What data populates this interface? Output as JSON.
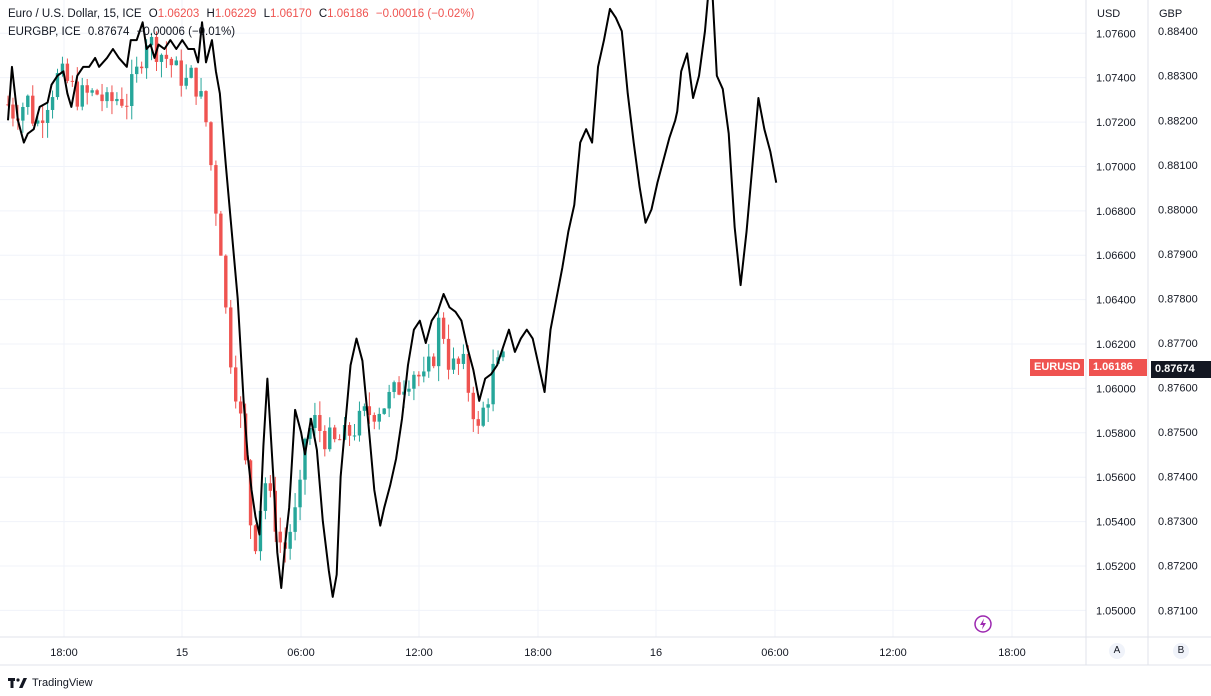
{
  "legend": {
    "symbol1": "Euro / U.S. Dollar, 15, ICE",
    "o_label": "O",
    "o_value": "1.06203",
    "h_label": "H",
    "h_value": "1.06229",
    "l_label": "L",
    "l_value": "1.06170",
    "c_label": "C",
    "c_value": "1.06186",
    "change1": "−0.00016 (−0.02%)",
    "symbol2": "EURGBP, ICE",
    "value2": "0.87674",
    "change2": "−0.00006 (−0.01%)"
  },
  "axes": {
    "left_unit": "USD",
    "right_unit": "GBP",
    "btn_a": "A",
    "btn_b": "B"
  },
  "tags": {
    "eurusd_label": "EURUSD",
    "eurusd_value": "1.06186",
    "eurgbp_value": "0.87674"
  },
  "footer": {
    "brand": "TradingView"
  },
  "colors": {
    "up": "#26a69a",
    "down": "#ef5350",
    "line": "#000000",
    "grid": "#f0f3fa",
    "tag_black": "#131722"
  },
  "chart_data": {
    "type": "line",
    "x_ticks": [
      "18:00",
      "15",
      "06:00",
      "12:00",
      "18:00",
      "16",
      "06:00",
      "12:00",
      "18:00"
    ],
    "usd_ticks": [
      "1.07600",
      "1.07400",
      "1.07200",
      "1.07000",
      "1.06800",
      "1.06600",
      "1.06400",
      "1.06200",
      "1.06000",
      "1.05800",
      "1.05600",
      "1.05400",
      "1.05200",
      "1.05000"
    ],
    "gbp_ticks": [
      "0.88400",
      "0.88300",
      "0.88200",
      "0.88100",
      "0.88000",
      "0.87900",
      "0.87800",
      "0.87700",
      "0.87600",
      "0.87500",
      "0.87400",
      "0.87300",
      "0.87200",
      "0.87100"
    ],
    "usd_range": [
      1.0488,
      1.0775
    ],
    "gbp_range": [
      0.8704,
      0.8847
    ],
    "series": [
      {
        "name": "Euro / U.S. Dollar",
        "kind": "candles",
        "anchors": [
          [
            0,
            1.0728
          ],
          [
            0.3,
            1.0724
          ],
          [
            1,
            1.073
          ],
          [
            1.4,
            1.0718
          ],
          [
            2,
            1.073
          ],
          [
            2.6,
            1.0742
          ],
          [
            3,
            1.0738
          ],
          [
            3.5,
            1.0732
          ],
          [
            4,
            1.0732
          ],
          [
            4.5,
            1.0733
          ],
          [
            5,
            1.0728
          ],
          [
            5.5,
            1.0731
          ],
          [
            6,
            1.073
          ],
          [
            6.5,
            1.0742
          ],
          [
            7,
            1.0758
          ],
          [
            7.5,
            1.0753
          ],
          [
            8,
            1.0749
          ],
          [
            8.5,
            1.0743
          ],
          [
            9,
            1.0738
          ],
          [
            9.3,
            1.0741
          ],
          [
            9.7,
            1.0732
          ],
          [
            10,
            1.072
          ],
          [
            10.2,
            1.0705
          ],
          [
            10.4,
            1.0688
          ],
          [
            10.7,
            1.067
          ],
          [
            11,
            1.0635
          ],
          [
            11.3,
            1.061
          ],
          [
            11.7,
            1.059
          ],
          [
            12,
            1.0565
          ],
          [
            12.2,
            1.0545
          ],
          [
            12.4,
            1.0525
          ],
          [
            12.7,
            1.0545
          ],
          [
            13,
            1.0558
          ],
          [
            13.5,
            1.054
          ],
          [
            13.9,
            1.0525
          ],
          [
            14.3,
            1.0538
          ],
          [
            14.7,
            1.0548
          ],
          [
            15,
            1.0578
          ],
          [
            15.5,
            1.0585
          ],
          [
            16,
            1.0578
          ],
          [
            16.5,
            1.0575
          ],
          [
            17,
            1.0578
          ],
          [
            17.5,
            1.0582
          ],
          [
            18,
            1.0588
          ],
          [
            18.5,
            1.059
          ],
          [
            19,
            1.0593
          ],
          [
            19.5,
            1.0598
          ],
          [
            20,
            1.0603
          ],
          [
            20.5,
            1.0608
          ],
          [
            21,
            1.0603
          ],
          [
            21.5,
            1.0615
          ],
          [
            21.8,
            1.0632
          ],
          [
            22,
            1.0625
          ],
          [
            22.3,
            1.061
          ],
          [
            22.8,
            1.061
          ],
          [
            23,
            1.061
          ],
          [
            23.3,
            1.0598
          ],
          [
            23.6,
            1.0587
          ],
          [
            23.8,
            1.0578
          ],
          [
            24,
            1.059
          ],
          [
            24.2,
            1.0595
          ],
          [
            24.5,
            1.0608
          ],
          [
            24.8,
            1.061
          ],
          [
            25,
            1.0612
          ],
          [
            25.2,
            1.0618
          ]
        ],
        "low_min": 1.0517,
        "high_max": 1.0761
      },
      {
        "name": "EURGBP",
        "kind": "line",
        "points": [
          [
            0,
            0.882
          ],
          [
            0.2,
            0.8832
          ],
          [
            0.5,
            0.882
          ],
          [
            0.8,
            0.8815
          ],
          [
            1.0,
            0.8817
          ],
          [
            1.3,
            0.8818
          ],
          [
            1.6,
            0.8823
          ],
          [
            2.0,
            0.8824
          ],
          [
            2.2,
            0.8828
          ],
          [
            2.5,
            0.883
          ],
          [
            2.8,
            0.8831
          ],
          [
            3.0,
            0.8826
          ],
          [
            3.2,
            0.8823
          ],
          [
            3.5,
            0.883
          ],
          [
            3.8,
            0.8832
          ],
          [
            4.1,
            0.8832
          ],
          [
            4.4,
            0.8834
          ],
          [
            4.6,
            0.8832
          ],
          [
            5.0,
            0.8834
          ],
          [
            5.3,
            0.8836
          ],
          [
            5.6,
            0.8834
          ],
          [
            6.0,
            0.8832
          ],
          [
            6.2,
            0.8838
          ],
          [
            6.5,
            0.8838
          ],
          [
            6.8,
            0.8842
          ],
          [
            7.0,
            0.8836
          ],
          [
            7.2,
            0.8837
          ],
          [
            7.4,
            0.8834
          ],
          [
            7.6,
            0.8837
          ],
          [
            7.9,
            0.8836
          ],
          [
            8.2,
            0.8838
          ],
          [
            8.5,
            0.8836
          ],
          [
            8.8,
            0.8838
          ],
          [
            9.1,
            0.8836
          ],
          [
            9.4,
            0.8836
          ],
          [
            9.6,
            0.8833
          ],
          [
            9.8,
            0.8842
          ],
          [
            10.0,
            0.8833
          ],
          [
            10.3,
            0.8838
          ],
          [
            10.5,
            0.8831
          ],
          [
            10.7,
            0.8826
          ],
          [
            11.0,
            0.881
          ],
          [
            11.3,
            0.8795
          ],
          [
            11.6,
            0.878
          ],
          [
            11.9,
            0.8757
          ],
          [
            12.1,
            0.8745
          ],
          [
            12.3,
            0.8737
          ],
          [
            12.5,
            0.8731
          ],
          [
            12.7,
            0.8727
          ],
          [
            12.9,
            0.8747
          ],
          [
            13.1,
            0.8762
          ],
          [
            13.4,
            0.874
          ],
          [
            13.6,
            0.8723
          ],
          [
            13.8,
            0.8715
          ],
          [
            14.0,
            0.8725
          ],
          [
            14.2,
            0.8733
          ],
          [
            14.5,
            0.8755
          ],
          [
            14.8,
            0.875
          ],
          [
            15.0,
            0.8745
          ],
          [
            15.3,
            0.8753
          ],
          [
            15.6,
            0.8746
          ],
          [
            15.9,
            0.873
          ],
          [
            16.2,
            0.8719
          ],
          [
            16.4,
            0.8713
          ],
          [
            16.6,
            0.8718
          ],
          [
            16.8,
            0.874
          ],
          [
            17.0,
            0.875
          ],
          [
            17.3,
            0.8765
          ],
          [
            17.6,
            0.8771
          ],
          [
            17.9,
            0.8766
          ],
          [
            18.2,
            0.8752
          ],
          [
            18.5,
            0.8737
          ],
          [
            18.8,
            0.8729
          ],
          [
            19.0,
            0.8733
          ],
          [
            19.3,
            0.8738
          ],
          [
            19.6,
            0.8744
          ],
          [
            19.9,
            0.8753
          ],
          [
            20.2,
            0.8765
          ],
          [
            20.5,
            0.8773
          ],
          [
            20.8,
            0.8775
          ],
          [
            21.1,
            0.877
          ],
          [
            21.4,
            0.8775
          ],
          [
            21.7,
            0.8777
          ],
          [
            22.0,
            0.8781
          ],
          [
            22.3,
            0.8778
          ],
          [
            22.6,
            0.8777
          ],
          [
            22.9,
            0.8775
          ],
          [
            23.2,
            0.8769
          ],
          [
            23.5,
            0.8764
          ],
          [
            23.8,
            0.8757
          ],
          [
            24.1,
            0.8762
          ],
          [
            24.4,
            0.8763
          ],
          [
            24.7,
            0.8765
          ],
          [
            25.0,
            0.8769
          ],
          [
            25.3,
            0.8773
          ],
          [
            25.6,
            0.8768
          ],
          [
            25.9,
            0.8771
          ],
          [
            26.2,
            0.8773
          ],
          [
            26.5,
            0.8771
          ],
          [
            26.8,
            0.8765
          ],
          [
            27.1,
            0.8759
          ],
          [
            27.4,
            0.8773
          ],
          [
            27.7,
            0.878
          ],
          [
            28.0,
            0.8787
          ],
          [
            28.3,
            0.8795
          ],
          [
            28.6,
            0.8801
          ],
          [
            28.9,
            0.8815
          ],
          [
            29.2,
            0.8818
          ],
          [
            29.5,
            0.8815
          ],
          [
            29.8,
            0.8832
          ],
          [
            30.1,
            0.8838
          ],
          [
            30.4,
            0.8845
          ],
          [
            30.7,
            0.8843
          ],
          [
            31.0,
            0.884
          ],
          [
            31.3,
            0.8826
          ],
          [
            31.6,
            0.8815
          ],
          [
            31.9,
            0.8805
          ],
          [
            32.2,
            0.8797
          ],
          [
            32.5,
            0.88
          ],
          [
            32.8,
            0.8806
          ],
          [
            33.1,
            0.8811
          ],
          [
            33.4,
            0.8816
          ],
          [
            33.7,
            0.882
          ],
          [
            33.8,
            0.8822
          ],
          [
            34.0,
            0.8831
          ],
          [
            34.3,
            0.8835
          ],
          [
            34.6,
            0.8825
          ],
          [
            34.9,
            0.883
          ],
          [
            35.2,
            0.884
          ],
          [
            35.5,
            0.8855
          ],
          [
            35.8,
            0.883
          ],
          [
            36.1,
            0.8827
          ],
          [
            36.4,
            0.8817
          ],
          [
            36.7,
            0.8796
          ],
          [
            37.0,
            0.8783
          ],
          [
            37.3,
            0.8795
          ],
          [
            37.6,
            0.881
          ],
          [
            37.9,
            0.8825
          ],
          [
            38.2,
            0.8818
          ],
          [
            38.5,
            0.8813
          ],
          [
            38.8,
            0.8806
          ]
        ]
      }
    ]
  }
}
